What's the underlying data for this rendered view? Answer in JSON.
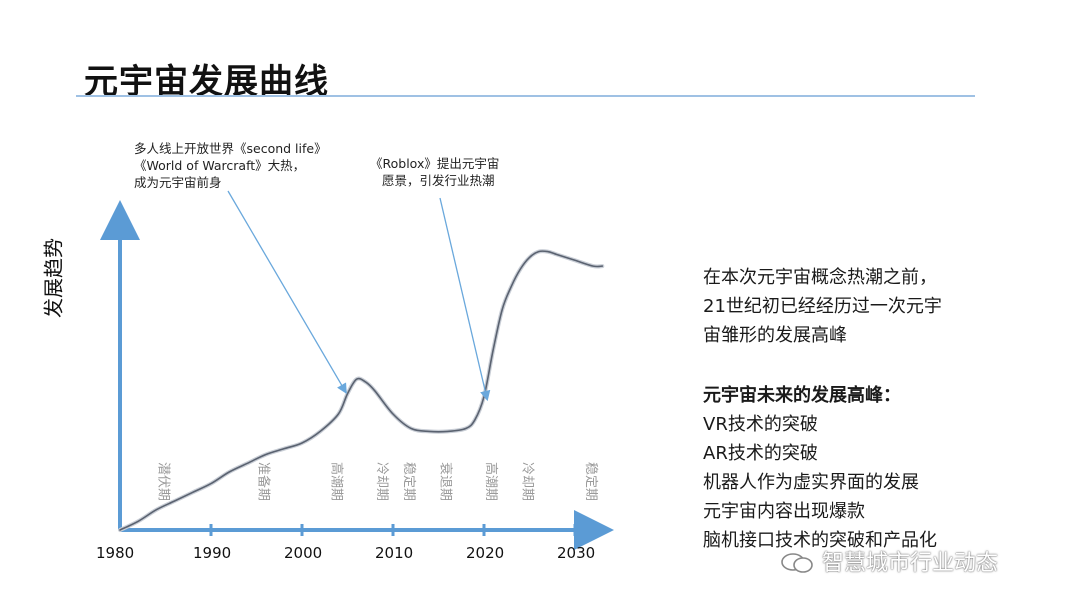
{
  "slide": {
    "title": "元宇宙发展曲线"
  },
  "chart_data": {
    "type": "line",
    "title": "元宇宙发展曲线",
    "ylabel": "发展趋势",
    "xlabel": "",
    "x_ticks": [
      "1980",
      "1990",
      "2000",
      "2010",
      "2020",
      "2030"
    ],
    "xlim": [
      1980,
      2033
    ],
    "ylim": [
      0,
      100
    ],
    "series": [
      {
        "name": "发展趋势",
        "x": [
          1980,
          1982,
          1984,
          1986,
          1988,
          1990,
          1992,
          1994,
          1996,
          1998,
          2000,
          2002,
          2004,
          2005,
          2006,
          2007,
          2008,
          2010,
          2012,
          2014,
          2016,
          2018,
          2019,
          2020,
          2021,
          2022,
          2023,
          2024,
          2025,
          2026,
          2027,
          2028,
          2030,
          2032,
          2033
        ],
        "y": [
          0,
          3,
          7,
          10,
          13,
          16,
          20,
          23,
          26,
          28,
          30,
          34,
          40,
          47,
          52,
          51,
          48,
          40,
          35,
          34,
          34,
          35,
          38,
          46,
          62,
          76,
          84,
          90,
          94,
          96,
          96,
          95,
          93,
          91,
          91
        ]
      }
    ],
    "phases": [
      {
        "label": "潜伏期",
        "year": 1985
      },
      {
        "label": "准备期",
        "year": 1996
      },
      {
        "label": "高潮期",
        "year": 2004
      },
      {
        "label": "冷却期",
        "year": 2009
      },
      {
        "label": "稳定期",
        "year": 2012
      },
      {
        "label": "衰退期",
        "year": 2016
      },
      {
        "label": "高潮期",
        "year": 2021
      },
      {
        "label": "冷却期",
        "year": 2025
      },
      {
        "label": "稳定期",
        "year": 2032
      }
    ],
    "annotations": [
      {
        "lines": [
          "多人线上开放世界《second life》",
          "《World of Warcraft》大热，",
          "成为元宇宙前身"
        ],
        "target_year": 2005
      },
      {
        "lines": [
          "《Roblox》提出元宇宙",
          "愿景，引发行业热潮"
        ],
        "target_year": 2020
      }
    ]
  },
  "right_panel": {
    "intro": [
      "在本次元宇宙概念热潮之前，",
      "21世纪初已经经历过一次元宇",
      "宙雏形的发展高峰"
    ],
    "heading": "元宇宙未来的发展高峰：",
    "items": [
      "VR技术的突破",
      "AR技术的突破",
      "机器人作为虚实界面的发展",
      "元宇宙内容出现爆款",
      "脑机接口技术的突破和产品化"
    ]
  },
  "watermark": {
    "text": "智慧城市行业动态"
  },
  "colors": {
    "axis": "#5b9bd5",
    "curve": "#5a6270",
    "rule": "#9fc1e4",
    "annotation_arrow": "#6aa8dc"
  }
}
